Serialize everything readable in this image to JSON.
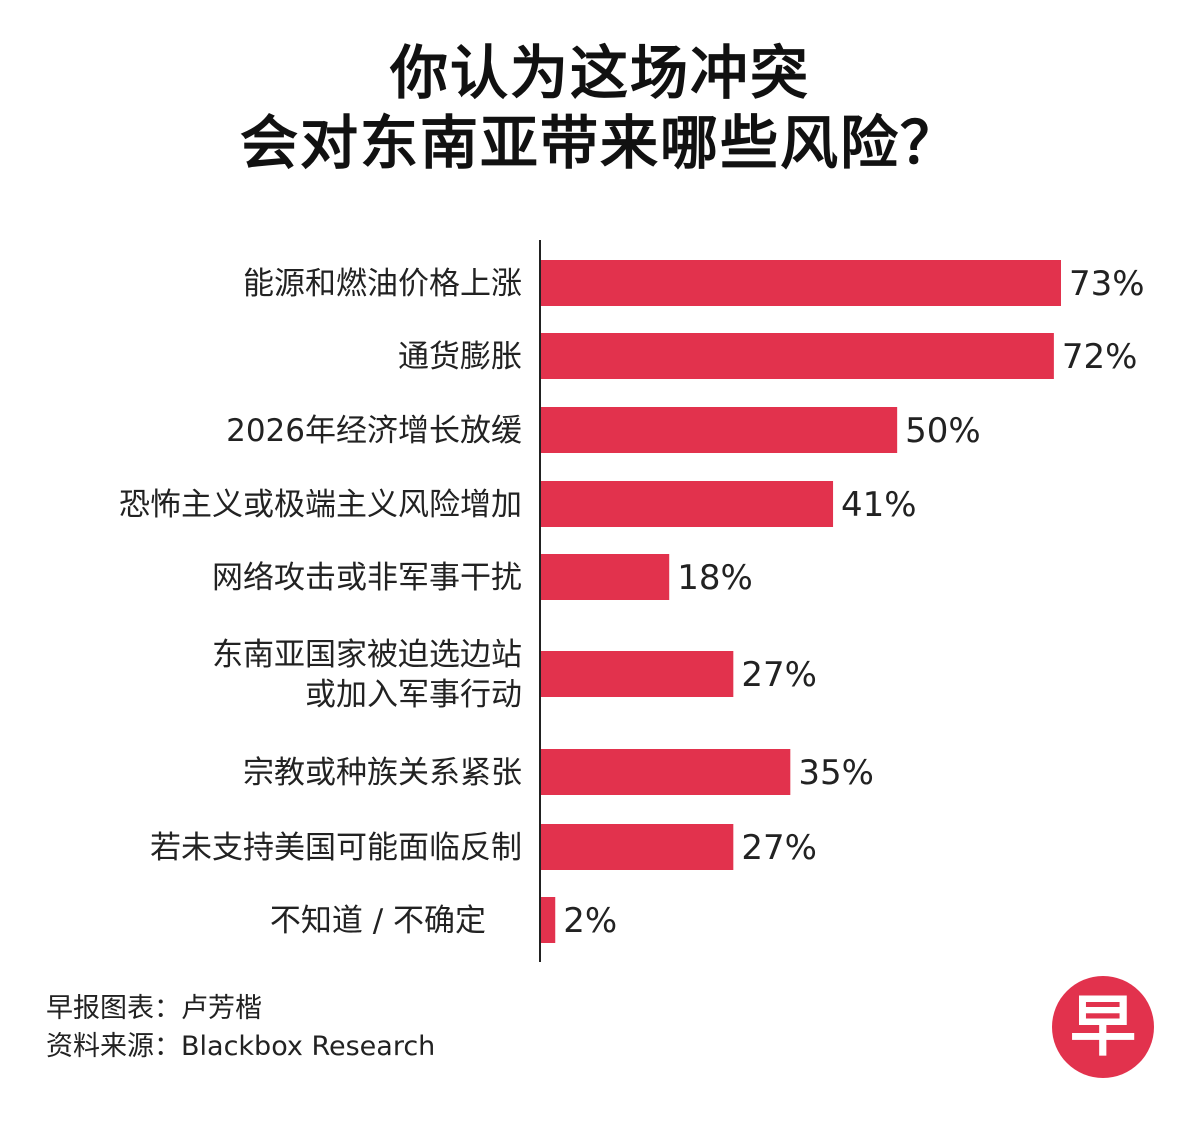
{
  "title": {
    "line1": "你认为这场冲突",
    "line2": "会对东南亚带来哪些风险？"
  },
  "chart_data": {
    "type": "bar",
    "orientation": "horizontal",
    "categories": [
      [
        "能源和燃油价格上涨"
      ],
      [
        "通货膨胀"
      ],
      [
        "2026年经济增长放缓"
      ],
      [
        "恐怖主义或极端主义风险增加"
      ],
      [
        "网络攻击或非军事干扰"
      ],
      [
        "东南亚国家被迫选边站",
        "或加入军事行动"
      ],
      [
        "宗教或种族关系紧张"
      ],
      [
        "若未支持美国可能面临反制"
      ],
      [
        "不知道 / 不确定"
      ]
    ],
    "values": [
      73,
      72,
      50,
      41,
      18,
      27,
      35,
      27,
      2
    ],
    "value_labels": [
      "73%",
      "72%",
      "50%",
      "41%",
      "18%",
      "27%",
      "35%",
      "27%",
      "2%"
    ],
    "unit": "%",
    "xlim": [
      0,
      73
    ],
    "bar_color": "#e2324d",
    "axis_color": "#222222",
    "grid": false,
    "legend": "none"
  },
  "credits": {
    "chart_by": "早报图表：卢芳楷",
    "source": "资料来源：Blackbox Research"
  },
  "logo": {
    "text": "早",
    "color": "#e2324d"
  }
}
